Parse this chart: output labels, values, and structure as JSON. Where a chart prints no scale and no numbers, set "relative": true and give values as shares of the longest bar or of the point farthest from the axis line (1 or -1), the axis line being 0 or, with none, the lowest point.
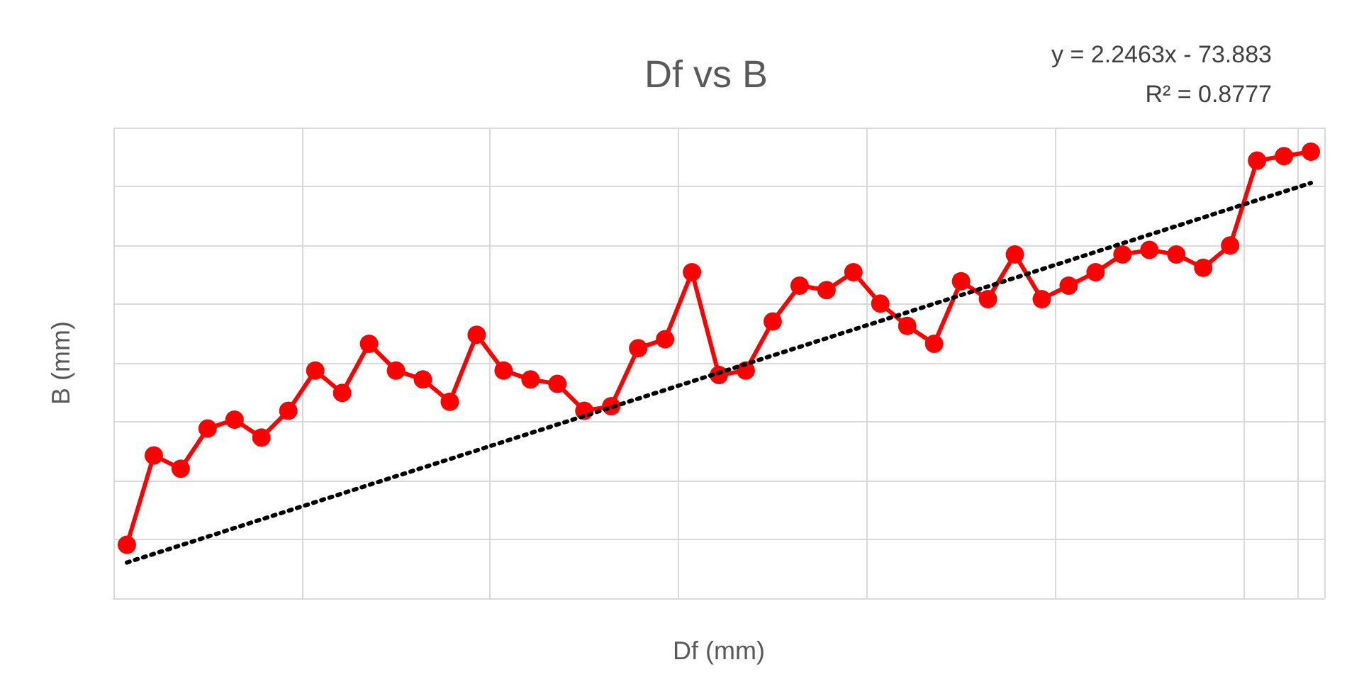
{
  "chart_data": {
    "type": "line",
    "title": "Df vs B",
    "xlabel": "Df (mm)",
    "ylabel": "B (mm)",
    "relative": true,
    "grid": true,
    "annotations": [
      "y = 2.2463x - 73.883",
      "R² = 0.8777"
    ],
    "categories": [
      null,
      null,
      null,
      null,
      null,
      null,
      null,
      null,
      null,
      null,
      null,
      null,
      null,
      null,
      null,
      null,
      null,
      null,
      null,
      null,
      null,
      null,
      null,
      null,
      null,
      null,
      null,
      null,
      null,
      null,
      null,
      null,
      null,
      null,
      null,
      null,
      null,
      null,
      null,
      null,
      null,
      null,
      null,
      null,
      null
    ],
    "series": [
      {
        "color": "#ff0000",
        "marker": "circle",
        "line_style": "solid",
        "values": [
          0.12,
          0.32,
          0.29,
          0.38,
          0.4,
          0.36,
          0.42,
          0.51,
          0.46,
          0.57,
          0.51,
          0.49,
          0.44,
          0.59,
          0.51,
          0.49,
          0.48,
          0.42,
          0.43,
          0.56,
          0.58,
          0.73,
          0.5,
          0.51,
          0.62,
          0.7,
          0.69,
          0.73,
          0.66,
          0.61,
          0.57,
          0.71,
          0.67,
          0.77,
          0.67,
          0.7,
          0.73,
          0.77,
          0.78,
          0.77,
          0.74,
          0.79,
          0.98,
          0.99,
          1.0
        ]
      },
      {
        "type": "line",
        "color": "#000000",
        "marker": "none",
        "line_style": "dotted",
        "values": [
          0.08,
          null,
          null,
          null,
          null,
          null,
          null,
          null,
          null,
          null,
          null,
          null,
          null,
          null,
          null,
          null,
          null,
          null,
          null,
          null,
          null,
          null,
          null,
          null,
          null,
          null,
          null,
          null,
          null,
          null,
          null,
          null,
          null,
          null,
          null,
          null,
          null,
          null,
          null,
          null,
          null,
          null,
          null,
          null,
          0.93
        ]
      }
    ]
  }
}
